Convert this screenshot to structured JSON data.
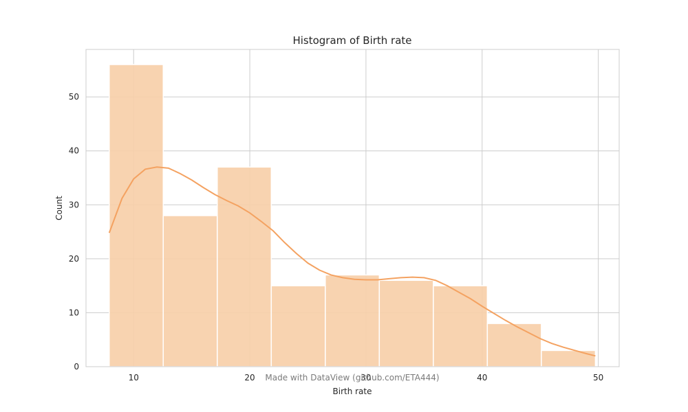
{
  "chart_data": {
    "type": "bar",
    "title": "Histogram of Birth rate",
    "xlabel": "Birth rate",
    "ylabel": "Count",
    "watermark": "Made with DataView (github.com/ETA444)",
    "xlim": [
      5.9,
      51.8
    ],
    "ylim": [
      0,
      58.8
    ],
    "xticks": [
      10,
      20,
      30,
      40,
      50
    ],
    "yticks": [
      0,
      10,
      20,
      30,
      40,
      50
    ],
    "grid": true,
    "legend": "none",
    "bins": [
      {
        "x0": 7.9,
        "x1": 12.55,
        "count": 56
      },
      {
        "x0": 12.55,
        "x1": 17.2,
        "count": 28
      },
      {
        "x0": 17.2,
        "x1": 21.85,
        "count": 37
      },
      {
        "x0": 21.85,
        "x1": 26.5,
        "count": 15
      },
      {
        "x0": 26.5,
        "x1": 31.15,
        "count": 17
      },
      {
        "x0": 31.15,
        "x1": 35.8,
        "count": 16
      },
      {
        "x0": 35.8,
        "x1": 40.45,
        "count": 15
      },
      {
        "x0": 40.45,
        "x1": 45.1,
        "count": 8
      },
      {
        "x0": 45.1,
        "x1": 49.75,
        "count": 3
      }
    ],
    "kde": {
      "x": [
        7.9,
        9,
        10,
        11,
        12,
        13,
        14,
        15,
        16,
        17,
        18,
        19,
        20,
        21,
        22,
        23,
        24,
        25,
        26,
        27,
        28,
        29,
        30,
        31,
        32,
        33,
        34,
        35,
        36,
        37,
        38,
        39,
        40,
        41,
        42,
        43,
        44,
        45,
        46,
        47,
        48,
        49,
        49.75
      ],
      "y": [
        24.8,
        31.2,
        34.8,
        36.6,
        37.0,
        36.8,
        35.8,
        34.6,
        33.2,
        31.9,
        30.8,
        29.8,
        28.5,
        26.9,
        25.2,
        23.0,
        21.0,
        19.2,
        17.9,
        17.0,
        16.5,
        16.2,
        16.1,
        16.1,
        16.3,
        16.5,
        16.6,
        16.5,
        16.0,
        15.0,
        13.8,
        12.6,
        11.2,
        9.9,
        8.6,
        7.4,
        6.3,
        5.2,
        4.3,
        3.6,
        3.0,
        2.4,
        2.0
      ]
    },
    "colors": {
      "bar_fill": "#f7cfa9",
      "bar_edge": "#ffffff",
      "kde_line": "#f4a261",
      "grid": "#cccccc",
      "frame": "#cccccc"
    }
  }
}
